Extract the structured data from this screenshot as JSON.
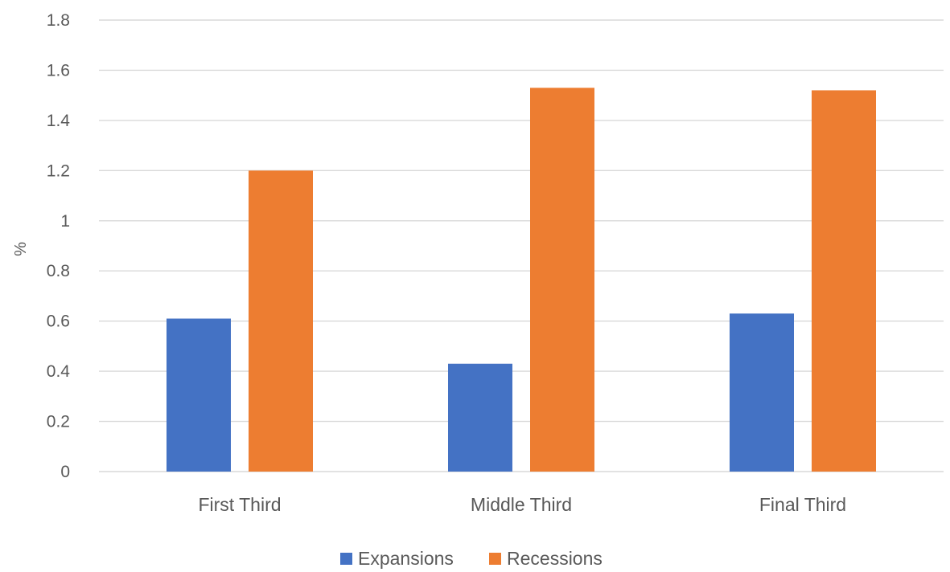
{
  "chart_data": {
    "type": "bar",
    "title": "",
    "xlabel": "",
    "ylabel": "%",
    "ylim": [
      0,
      1.8
    ],
    "yticks": [
      0,
      0.2,
      0.4,
      0.6,
      0.8,
      1,
      1.2,
      1.4,
      1.6,
      1.8
    ],
    "ytick_labels": [
      "0",
      "0.2",
      "0.4",
      "0.6",
      "0.8",
      "1",
      "1.2",
      "1.4",
      "1.6",
      "1.8"
    ],
    "grid": true,
    "legend_position": "bottom",
    "categories": [
      "First Third",
      "Middle Third",
      "Final Third"
    ],
    "series": [
      {
        "name": "Expansions",
        "color": "#4472c4",
        "values": [
          0.61,
          0.43,
          0.63
        ]
      },
      {
        "name": "Recessions",
        "color": "#ed7d31",
        "values": [
          1.2,
          1.53,
          1.52
        ]
      }
    ]
  }
}
